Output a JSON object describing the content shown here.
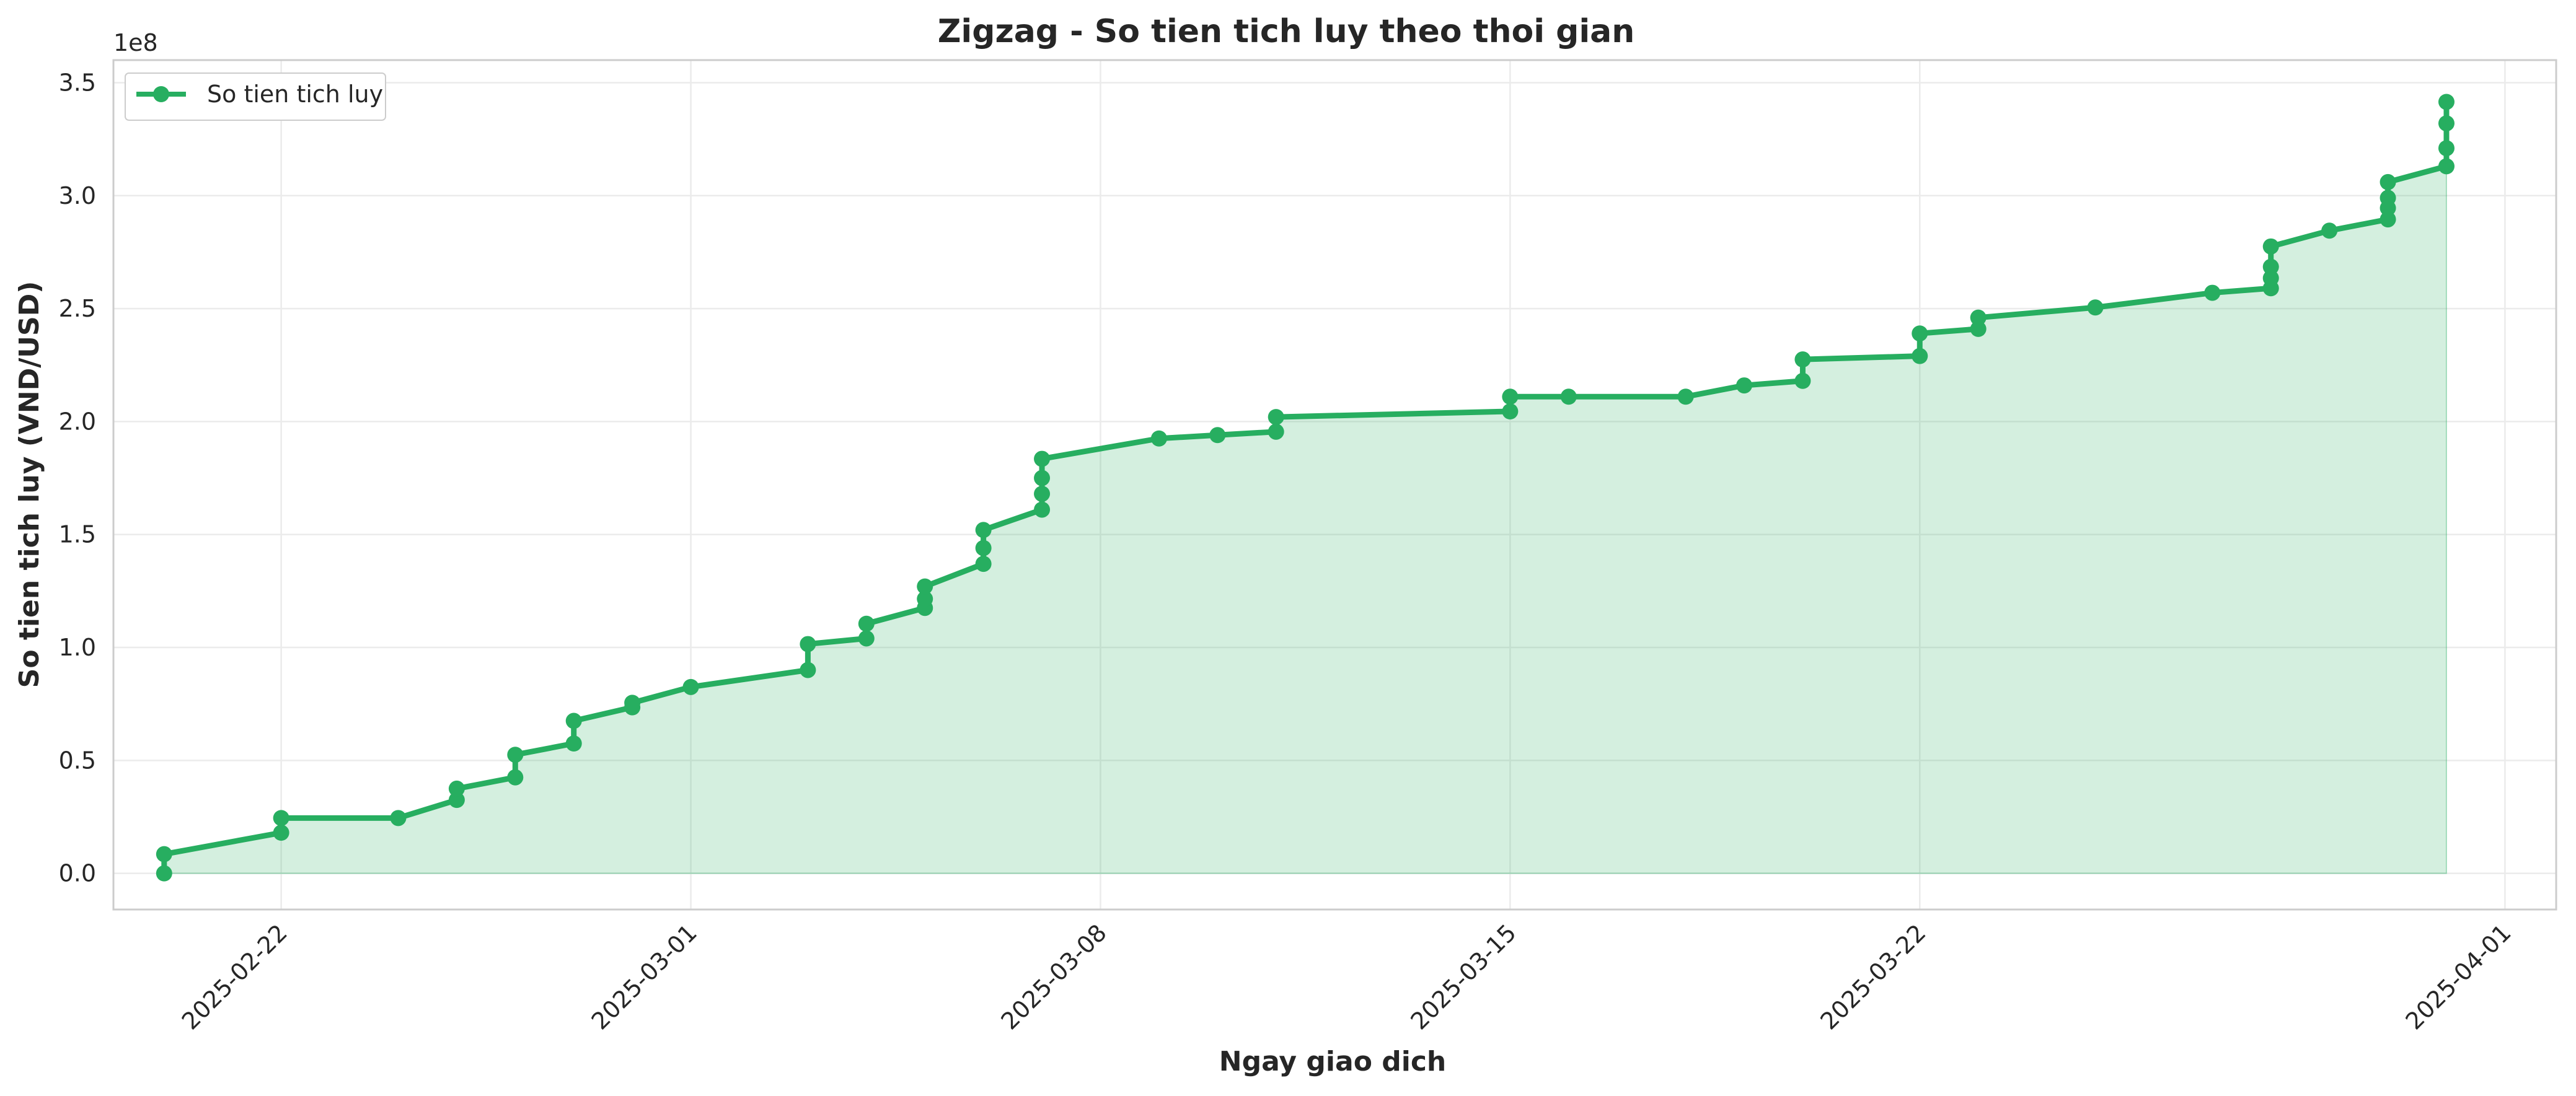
{
  "chart_data": {
    "type": "area",
    "title": "Zigzag - So tien tich luy theo thoi gian",
    "xlabel": "Ngay giao dich",
    "ylabel": "So tien tich luy (VND/USD)",
    "y_offset_label": "1e8",
    "ylim": [
      -0.16,
      3.6
    ],
    "xlim": [
      "2025-02-19T03:12",
      "2025-04-01T21:00"
    ],
    "x_ticks": [
      "2025-02-22",
      "2025-03-01",
      "2025-03-08",
      "2025-03-15",
      "2025-03-22",
      "2025-04-01"
    ],
    "y_ticks": [
      "0.0",
      "0.5",
      "1.0",
      "1.5",
      "2.0",
      "2.5",
      "3.0",
      "3.5"
    ],
    "y_tick_values": [
      0,
      0.5,
      1.0,
      1.5,
      2.0,
      2.5,
      3.0,
      3.5
    ],
    "grid": true,
    "legend_position": "top-left",
    "color": "#27ae60",
    "fill_color": "#27ae60",
    "series": [
      {
        "name": "So tien tich luy",
        "x": [
          "2025-02-20",
          "2025-02-20",
          "2025-02-22",
          "2025-02-22",
          "2025-02-24",
          "2025-02-25",
          "2025-02-25",
          "2025-02-26",
          "2025-02-26",
          "2025-02-27",
          "2025-02-27",
          "2025-02-28",
          "2025-02-28",
          "2025-03-01",
          "2025-03-03",
          "2025-03-03",
          "2025-03-04",
          "2025-03-04",
          "2025-03-05",
          "2025-03-05",
          "2025-03-05",
          "2025-03-06",
          "2025-03-06",
          "2025-03-06",
          "2025-03-07",
          "2025-03-07",
          "2025-03-07",
          "2025-03-07",
          "2025-03-09",
          "2025-03-10",
          "2025-03-11",
          "2025-03-11",
          "2025-03-15",
          "2025-03-15",
          "2025-03-16",
          "2025-03-18",
          "2025-03-19",
          "2025-03-20",
          "2025-03-20",
          "2025-03-22",
          "2025-03-22",
          "2025-03-23",
          "2025-03-23",
          "2025-03-25",
          "2025-03-27",
          "2025-03-28",
          "2025-03-28",
          "2025-03-28",
          "2025-03-28",
          "2025-03-29",
          "2025-03-30",
          "2025-03-30",
          "2025-03-30",
          "2025-03-30",
          "2025-03-31",
          "2025-03-31",
          "2025-03-31",
          "2025-03-31"
        ],
        "y": [
          0.0,
          0.085,
          0.18,
          0.245,
          0.245,
          0.325,
          0.375,
          0.425,
          0.525,
          0.575,
          0.675,
          0.735,
          0.755,
          0.825,
          0.9,
          1.015,
          1.04,
          1.105,
          1.175,
          1.215,
          1.27,
          1.37,
          1.44,
          1.52,
          1.61,
          1.68,
          1.75,
          1.835,
          1.925,
          1.94,
          1.955,
          2.02,
          2.045,
          2.11,
          2.11,
          2.11,
          2.16,
          2.18,
          2.275,
          2.29,
          2.39,
          2.41,
          2.46,
          2.505,
          2.57,
          2.59,
          2.635,
          2.685,
          2.775,
          2.845,
          2.895,
          2.945,
          2.99,
          3.06,
          3.13,
          3.21,
          3.32,
          3.415
        ]
      }
    ]
  }
}
